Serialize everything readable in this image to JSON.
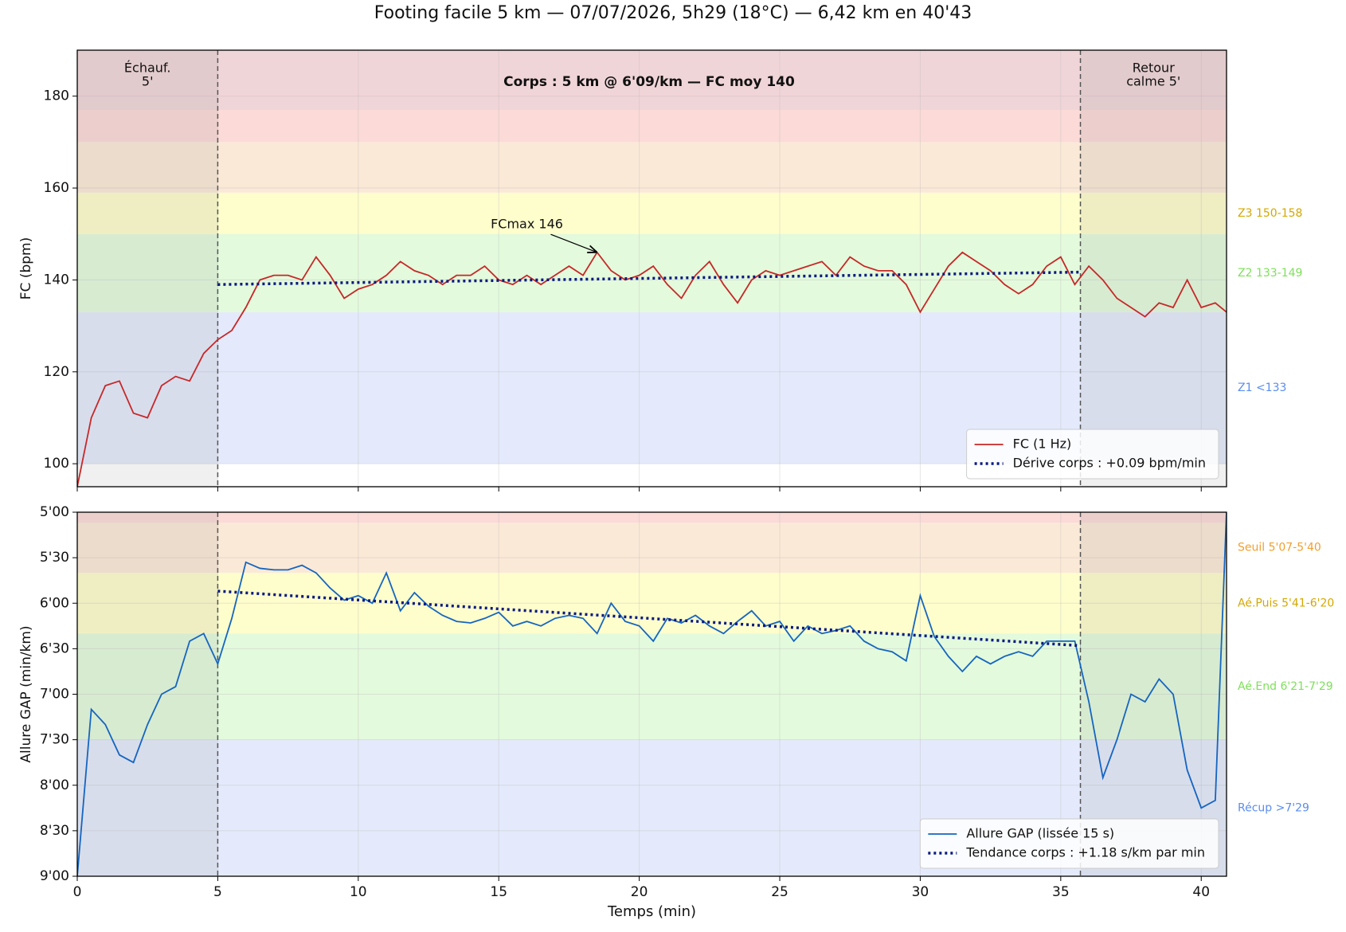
{
  "title": "Footing facile 5 km — 07/07/2026, 5h29 (18°C) — 6,42 km en 40'43",
  "chart_data": [
    {
      "type": "line",
      "ylabel": "FC (bpm)",
      "xlim": [
        0,
        40.9
      ],
      "xticks": [
        0,
        5,
        10,
        15,
        20,
        25,
        30,
        35,
        40
      ],
      "show_xtick_labels": false,
      "ylim": [
        95,
        190
      ],
      "yticks": [
        100,
        120,
        140,
        160,
        180
      ],
      "grid": true,
      "legend": "lower right",
      "bands": [
        {
          "from": 100,
          "to": 133,
          "color": "#e4eafb",
          "label": "Z1 <133",
          "label_color": "#5b8def"
        },
        {
          "from": 133,
          "to": 150,
          "color": "#e3fadc",
          "label": "Z2 133-149",
          "label_color": "#7ee05a"
        },
        {
          "from": 150,
          "to": 159,
          "color": "#fefdcc",
          "label": "Z3 150-158",
          "label_color": "#d4a800"
        },
        {
          "from": 159,
          "to": 170,
          "color": "#fbe9d7"
        },
        {
          "from": 170,
          "to": 177,
          "color": "#fbdad7"
        },
        {
          "from": 177,
          "to": 190,
          "color": "#f0d5d8"
        }
      ],
      "phases": [
        {
          "from": 0,
          "to": 5,
          "label": [
            "Échauf.",
            "5'"
          ]
        },
        {
          "from": 35.7,
          "to": 40.9,
          "label": [
            "Retour",
            "calme 5'"
          ]
        }
      ],
      "vlines": [
        5,
        35.7
      ],
      "body_label": "Corps : 5 km @ 6'09/km — FC moy 140",
      "annotations": [
        {
          "text": "FCmax 146",
          "x": 18.5,
          "y": 146,
          "text_x": 16,
          "text_y": 152
        }
      ],
      "x": [
        0,
        0.5,
        1,
        1.5,
        2,
        2.5,
        3,
        3.5,
        4,
        4.5,
        5,
        5.5,
        6,
        6.5,
        7,
        7.5,
        8,
        8.5,
        9,
        9.5,
        10,
        10.5,
        11,
        11.5,
        12,
        12.5,
        13,
        13.5,
        14,
        14.5,
        15,
        15.5,
        16,
        16.5,
        17,
        17.5,
        18,
        18.5,
        19,
        19.5,
        20,
        20.5,
        21,
        21.5,
        22,
        22.5,
        23,
        23.5,
        24,
        24.5,
        25,
        25.5,
        26,
        26.5,
        27,
        27.5,
        28,
        28.5,
        29,
        29.5,
        30,
        30.5,
        31,
        31.5,
        32,
        32.5,
        33,
        33.5,
        34,
        34.5,
        35,
        35.5,
        36,
        36.5,
        37,
        37.5,
        38,
        38.5,
        39,
        39.5,
        40,
        40.5,
        40.9
      ],
      "series": [
        {
          "name": "FC (1 Hz)",
          "color": "#c62828",
          "style": "solid",
          "values": [
            95,
            110,
            117,
            118,
            111,
            110,
            117,
            119,
            118,
            124,
            127,
            129,
            134,
            140,
            141,
            141,
            140,
            145,
            141,
            136,
            138,
            139,
            141,
            144,
            142,
            141,
            139,
            141,
            141,
            143,
            140,
            139,
            141,
            139,
            141,
            143,
            141,
            146,
            142,
            140,
            141,
            143,
            139,
            136,
            141,
            144,
            139,
            135,
            140,
            142,
            141,
            142,
            143,
            144,
            141,
            145,
            143,
            142,
            142,
            139,
            133,
            138,
            143,
            146,
            144,
            142,
            139,
            137,
            139,
            143,
            145,
            139,
            143,
            140,
            136,
            134,
            132,
            135,
            134,
            140,
            134,
            135,
            133
          ]
        },
        {
          "name": "Dérive corps : +0.09 bpm/min",
          "color": "#0a1a80",
          "style": "dotted",
          "x": [
            5,
            35.7
          ],
          "values": [
            139,
            141.7
          ]
        }
      ]
    },
    {
      "type": "line",
      "ylabel": "Allure GAP (min/km)",
      "xlabel": "Temps (min)",
      "xlim": [
        0,
        40.9
      ],
      "xticks": [
        0,
        5,
        10,
        15,
        20,
        25,
        30,
        35,
        40
      ],
      "show_xtick_labels": true,
      "ylim": [
        540,
        300
      ],
      "yticks": [
        {
          "value": 300,
          "label": "5'00"
        },
        {
          "value": 330,
          "label": "5'30"
        },
        {
          "value": 360,
          "label": "6'00"
        },
        {
          "value": 390,
          "label": "6'30"
        },
        {
          "value": 420,
          "label": "7'00"
        },
        {
          "value": 450,
          "label": "7'30"
        },
        {
          "value": 480,
          "label": "8'00"
        },
        {
          "value": 510,
          "label": "8'30"
        },
        {
          "value": 540,
          "label": "9'00"
        }
      ],
      "grid": true,
      "legend": "lower right",
      "bands": [
        {
          "from": 450,
          "to": 540,
          "color": "#e4eafb",
          "label": "Récup >7'29",
          "label_color": "#5b8def"
        },
        {
          "from": 380,
          "to": 450,
          "color": "#e3fadc",
          "label": "Aé.End 6'21-7'29",
          "label_color": "#7ee05a"
        },
        {
          "from": 340,
          "to": 380,
          "color": "#fefdcc",
          "label": "Aé.Puis 5'41-6'20",
          "label_color": "#d4a800"
        },
        {
          "from": 307,
          "to": 340,
          "color": "#fbe9d7",
          "label": "Seuil 5'07-5'40",
          "label_color": "#f0a030"
        },
        {
          "from": 300,
          "to": 307,
          "color": "#fbdad7"
        }
      ],
      "phases": [
        {
          "from": 0,
          "to": 5
        },
        {
          "from": 35.7,
          "to": 40.9
        }
      ],
      "vlines": [
        5,
        35.7
      ],
      "x": [
        0,
        0.5,
        1,
        1.5,
        2,
        2.5,
        3,
        3.5,
        4,
        4.5,
        5,
        5.5,
        6,
        6.5,
        7,
        7.5,
        8,
        8.5,
        9,
        9.5,
        10,
        10.5,
        11,
        11.5,
        12,
        12.5,
        13,
        13.5,
        14,
        14.5,
        15,
        15.5,
        16,
        16.5,
        17,
        17.5,
        18,
        18.5,
        19,
        19.5,
        20,
        20.5,
        21,
        21.5,
        22,
        22.5,
        23,
        23.5,
        24,
        24.5,
        25,
        25.5,
        26,
        26.5,
        27,
        27.5,
        28,
        28.5,
        29,
        29.5,
        30,
        30.5,
        31,
        31.5,
        32,
        32.5,
        33,
        33.5,
        34,
        34.5,
        35,
        35.5,
        36,
        36.5,
        37,
        37.5,
        38,
        38.5,
        39,
        39.5,
        40,
        40.5,
        40.9
      ],
      "series": [
        {
          "name": "Allure GAP (lissée 15 s)",
          "color": "#1565c0",
          "style": "solid",
          "values": [
            540,
            430,
            440,
            460,
            465,
            440,
            420,
            415,
            385,
            380,
            400,
            370,
            333,
            337,
            338,
            338,
            335,
            340,
            350,
            358,
            355,
            360,
            340,
            365,
            353,
            362,
            368,
            372,
            373,
            370,
            366,
            375,
            372,
            375,
            370,
            368,
            370,
            380,
            360,
            372,
            375,
            385,
            370,
            373,
            368,
            375,
            380,
            372,
            365,
            375,
            372,
            385,
            375,
            380,
            378,
            375,
            385,
            390,
            392,
            398,
            355,
            382,
            395,
            405,
            395,
            400,
            395,
            392,
            395,
            385,
            385,
            385,
            425,
            475,
            450,
            420,
            425,
            410,
            420,
            470,
            495,
            490,
            300
          ]
        },
        {
          "name": "Tendance corps : +1.18 s/km par min",
          "color": "#0a1a80",
          "style": "dotted",
          "x": [
            5,
            35.7
          ],
          "values": [
            352,
            388
          ]
        }
      ]
    }
  ]
}
